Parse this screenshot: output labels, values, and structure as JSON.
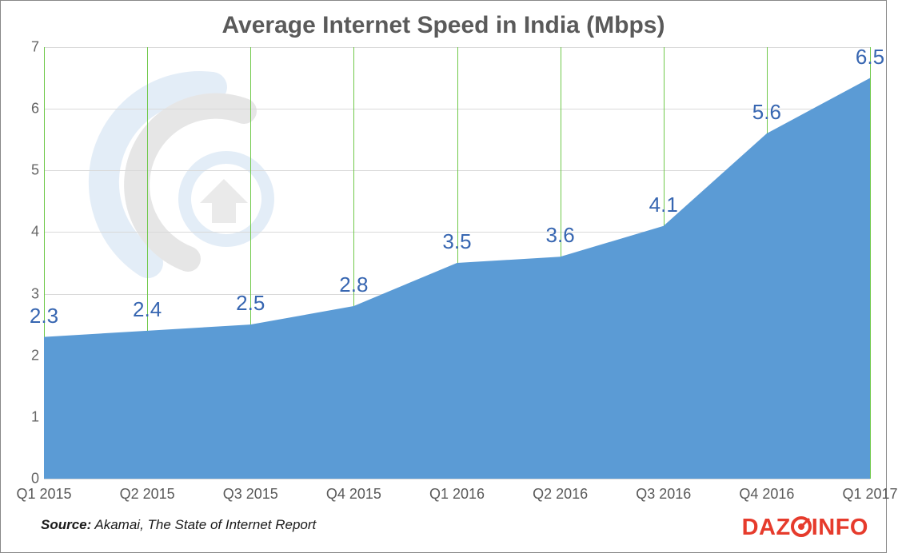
{
  "title": "Average Internet Speed in India (Mbps)",
  "chart": {
    "type": "area",
    "categories": [
      "Q1 2015",
      "Q2 2015",
      "Q3 2015",
      "Q4 2015",
      "Q1 2016",
      "Q2 2016",
      "Q3 2016",
      "Q4 2016",
      "Q1 2017"
    ],
    "values": [
      2.3,
      2.4,
      2.5,
      2.8,
      3.5,
      3.6,
      4.1,
      5.6,
      6.5
    ],
    "label_texts": [
      "2.3",
      "2.4",
      "2.5",
      "2.8",
      "3.5",
      "3.6",
      "4.1",
      "5.6",
      "6.5"
    ],
    "ylim": [
      0,
      7
    ],
    "ytick_step": 1,
    "fill_color": "#5b9bd5",
    "grid_color": "#d9d9d9",
    "vgrid_color": "#70c94a",
    "label_color": "#3766b1",
    "label_fontsize": 26,
    "title_fontsize": 30,
    "title_color": "#5a5a5a",
    "tick_fontsize": 18,
    "tick_color": "#666666",
    "background_color": "#ffffff"
  },
  "source": {
    "label": "Source:",
    "text": " Akamai, The State of Internet Report"
  },
  "brand": {
    "part1": "DAZ",
    "part2": "INFO"
  }
}
